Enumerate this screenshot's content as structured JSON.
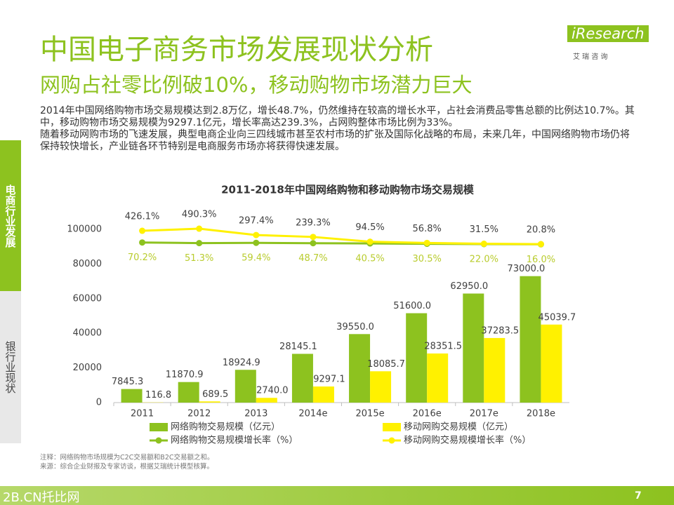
{
  "header": {
    "title": "中国电子商务市场发展现状分析",
    "subtitle": "网购占社零比例破10%，移动购物市场潜力巨大",
    "logo": "iResearch",
    "logo_cn": "艾 瑞 咨 询"
  },
  "body": {
    "paragraphs": [
      "2014年中国网络购物市场交易规模达到2.8万亿，增长48.7%，仍然维持在较高的增长水平，占社会消费品零售总额的比例达10.7%。其中，移动购物市场交易规模为9297.1亿元，增长率高达239.3%，占网购整体市场比例为33%。",
      "随着移动网购市场的飞速发展，典型电商企业向三四线城市甚至农村市场的扩张及国际化战略的布局，未来几年，中国网络购物市场仍将保持较快增长，产业链各环节特别是电商服务市场亦将获得快速发展。"
    ]
  },
  "sidebar": {
    "tabs": [
      "电商行业发展",
      "银行业现状"
    ]
  },
  "chart_data": {
    "type": "bar",
    "title": "2011-2018年中国网络购物和移动购物市场交易规模",
    "categories": [
      "2011",
      "2012",
      "2013",
      "2014e",
      "2015e",
      "2016e",
      "2017e",
      "2018e"
    ],
    "ylim": [
      0,
      100000
    ],
    "yticks": [
      0,
      20000,
      40000,
      60000,
      80000,
      100000
    ],
    "y2lim": [
      -4800,
      470
    ],
    "series": [
      {
        "name": "网络购物交易规模（亿元）",
        "color": "#8dc21f",
        "values": [
          7845.3,
          11870.9,
          18924.9,
          28145.1,
          39550,
          51600,
          62950,
          73000
        ],
        "value_labels": [
          "7845.3",
          "11870.9",
          "18924.9",
          "28145.1",
          "39550.0",
          "51600.0",
          "62950.0",
          "73000.0"
        ]
      },
      {
        "name": "移动网购交易规模（亿元）",
        "color": "#fff100",
        "values": [
          116.8,
          689.5,
          2740,
          9297.1,
          18085.7,
          28351.5,
          37283.5,
          45039.7
        ],
        "value_labels": [
          "116.8",
          "689.5",
          "2740.0",
          "9297.1",
          "18085.7",
          "28351.5",
          "37283.5",
          "45039.7"
        ]
      },
      {
        "name": "网络购物交易规模增长率（%）",
        "type": "line",
        "axis": "y2",
        "color": "#8dc21f",
        "label_color": "#b9cc2e",
        "values": [
          70.2,
          51.3,
          59.4,
          48.7,
          40.5,
          30.5,
          22.0,
          16.0
        ],
        "value_labels": [
          "70.2%",
          "51.3%",
          "59.4%",
          "48.7%",
          "40.5%",
          "30.5%",
          "22.0%",
          "16.0%"
        ]
      },
      {
        "name": "移动网购交易规模增长率（%）",
        "type": "line",
        "axis": "y2",
        "color": "#fff100",
        "label_color": "#404040",
        "values": [
          426.1,
          490.3,
          297.4,
          239.3,
          94.5,
          56.8,
          31.5,
          20.8
        ],
        "value_labels": [
          "426.1%",
          "490.3%",
          "297.4%",
          "239.3%",
          "94.5%",
          "56.8%",
          "31.5%",
          "20.8%"
        ]
      }
    ]
  },
  "footer": {
    "notes": [
      "注释：网络购物市场规模为C2C交易额和B2C交易额之和。",
      "来源：综合企业财报及专家访谈，根据艾瑞统计模型核算。"
    ],
    "watermark": "2B.CN托比网",
    "page": "7"
  }
}
